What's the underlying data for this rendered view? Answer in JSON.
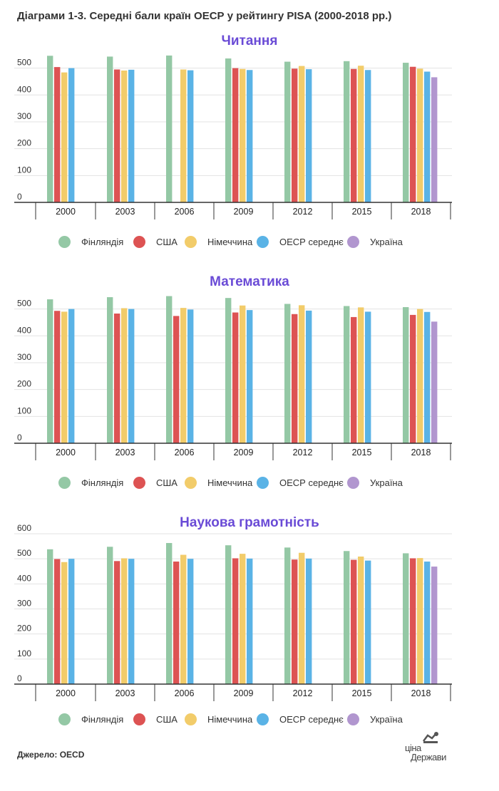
{
  "title": "Діаграми 1-3. Середні бали країн ОЕСР у рейтингу PISA  (2000-2018 рр.)",
  "source": "Джерело: OECD",
  "logo": {
    "line1": "ціна",
    "line2": "Держави"
  },
  "colors": {
    "title_accent": "#6a4bd6",
    "Фінляндія": "#94c8a5",
    "США": "#dd5353",
    "Німеччина": "#f2cc6a",
    "ОЕСР середнє": "#5ab3e6",
    "Україна": "#b196cf"
  },
  "legend": [
    "Фінляндія",
    "США",
    "Німеччина",
    "ОЕСР середнє",
    "Україна"
  ],
  "chart_data": [
    {
      "type": "bar",
      "title": "Читання",
      "categories": [
        "2000",
        "2003",
        "2006",
        "2009",
        "2012",
        "2015",
        "2018"
      ],
      "y_ticks": [
        "0",
        "100",
        "200",
        "300",
        "400",
        "500"
      ],
      "ylim": [
        0,
        560
      ],
      "series": [
        {
          "name": "Фінляндія",
          "values": [
            546,
            543,
            547,
            536,
            524,
            526,
            520
          ]
        },
        {
          "name": "США",
          "values": [
            504,
            495,
            null,
            500,
            498,
            497,
            505
          ]
        },
        {
          "name": "Німеччина",
          "values": [
            484,
            491,
            495,
            497,
            508,
            509,
            498
          ]
        },
        {
          "name": "ОЕСР середнє",
          "values": [
            500,
            494,
            492,
            493,
            496,
            493,
            487
          ]
        },
        {
          "name": "Україна",
          "values": [
            null,
            null,
            null,
            null,
            null,
            null,
            466
          ]
        }
      ]
    },
    {
      "type": "bar",
      "title": "Математика",
      "categories": [
        "2000",
        "2003",
        "2006",
        "2009",
        "2012",
        "2015",
        "2018"
      ],
      "y_ticks": [
        "0",
        "100",
        "200",
        "300",
        "400",
        "500"
      ],
      "ylim": [
        0,
        560
      ],
      "series": [
        {
          "name": "Фінляндія",
          "values": [
            536,
            544,
            548,
            541,
            519,
            511,
            507
          ]
        },
        {
          "name": "США",
          "values": [
            493,
            483,
            474,
            487,
            481,
            470,
            478
          ]
        },
        {
          "name": "Німеччина",
          "values": [
            490,
            503,
            504,
            513,
            514,
            506,
            500
          ]
        },
        {
          "name": "ОЕСР середнє",
          "values": [
            500,
            500,
            498,
            496,
            494,
            490,
            489
          ]
        },
        {
          "name": "Україна",
          "values": [
            null,
            null,
            null,
            null,
            null,
            null,
            453
          ]
        }
      ]
    },
    {
      "type": "bar",
      "title": "Наукова грамотність",
      "categories": [
        "2000",
        "2003",
        "2006",
        "2009",
        "2012",
        "2015",
        "2018"
      ],
      "y_ticks": [
        "0",
        "100",
        "200",
        "300",
        "400",
        "500",
        "600"
      ],
      "ylim": [
        0,
        600
      ],
      "series": [
        {
          "name": "Фінляндія",
          "values": [
            538,
            548,
            563,
            554,
            545,
            531,
            522
          ]
        },
        {
          "name": "США",
          "values": [
            499,
            491,
            489,
            502,
            497,
            496,
            502
          ]
        },
        {
          "name": "Німеччина",
          "values": [
            487,
            502,
            516,
            520,
            524,
            509,
            503
          ]
        },
        {
          "name": "ОЕСР середнє",
          "values": [
            500,
            500,
            500,
            501,
            501,
            493,
            489
          ]
        },
        {
          "name": "Україна",
          "values": [
            null,
            null,
            null,
            null,
            null,
            null,
            469
          ]
        }
      ]
    }
  ]
}
